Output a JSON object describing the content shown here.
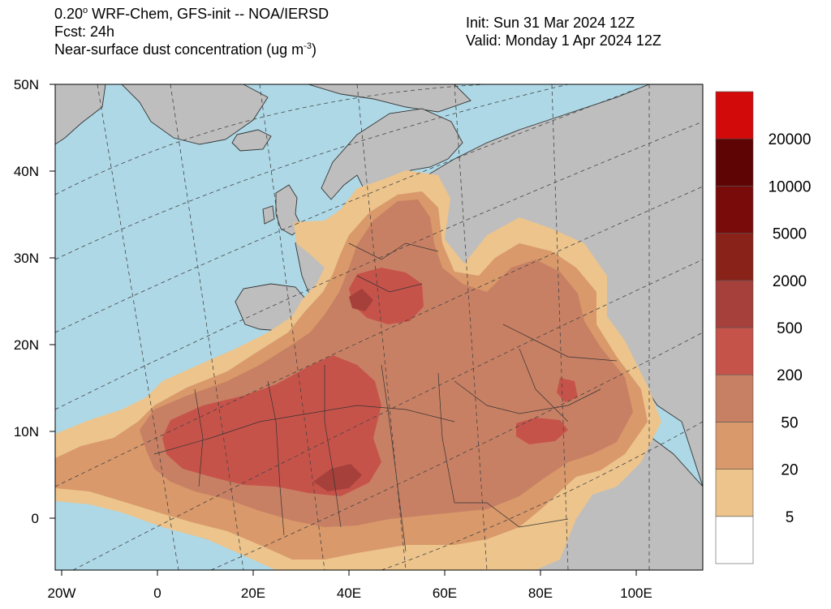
{
  "header": {
    "model_prefix": "0.20",
    "model_deg": "o",
    "model_rest": " WRF-Chem, GFS-init -- NOA/IERSD",
    "forecast": "Fcst: 24h",
    "variable_prefix": "Near-surface dust concentration (ug m",
    "variable_exp": "-3",
    "variable_suffix": ")",
    "init": "Init: Sun 31 Mar 2024  12Z",
    "valid": "Valid: Monday 1 Apr 2024  12Z"
  },
  "axes": {
    "lat_ticks": [
      "50N",
      "40N",
      "30N",
      "20N",
      "10N",
      "0"
    ],
    "lon_ticks": [
      "20W",
      "0",
      "20E",
      "40E",
      "60E",
      "80E",
      "100E"
    ]
  },
  "colorbar": {
    "levels": [
      "5",
      "20",
      "50",
      "200",
      "500",
      "2000",
      "5000",
      "10000",
      "20000"
    ],
    "colors": [
      "#ffffff",
      "#ecc48c",
      "#d9996a",
      "#c88064",
      "#c6534a",
      "#a5403a",
      "#892219",
      "#7a0b0b",
      "#5e0404",
      "#d30a0a"
    ]
  },
  "map_colors": {
    "ocean": "#aed8e6",
    "land": "#bebebe",
    "dust_5": "#ecc48c",
    "dust_20": "#d9996a",
    "dust_50": "#c88064",
    "dust_200": "#c6534a",
    "dust_500": "#a5403a"
  }
}
